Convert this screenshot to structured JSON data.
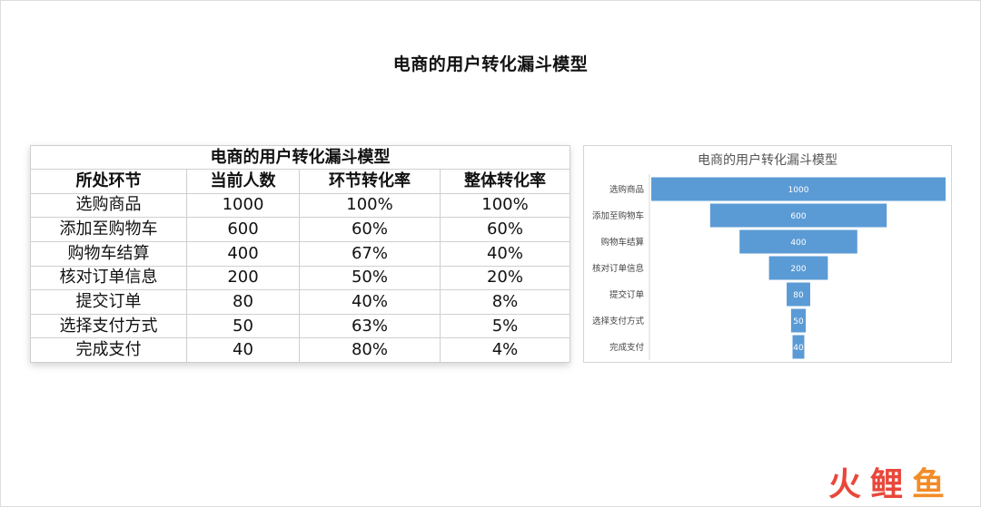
{
  "page": {
    "title": "电商的用户转化漏斗模型"
  },
  "table": {
    "caption": "电商的用户转化漏斗模型",
    "headers": [
      "所处环节",
      "当前人数",
      "环节转化率",
      "整体转化率"
    ],
    "rows": [
      [
        "选购商品",
        "1000",
        "100%",
        "100%"
      ],
      [
        "添加至购物车",
        "600",
        "60%",
        "60%"
      ],
      [
        "购物车结算",
        "400",
        "67%",
        "40%"
      ],
      [
        "核对订单信息",
        "200",
        "50%",
        "20%"
      ],
      [
        "提交订单",
        "80",
        "40%",
        "8%"
      ],
      [
        "选择支付方式",
        "50",
        "63%",
        "5%"
      ],
      [
        "完成支付",
        "40",
        "80%",
        "4%"
      ]
    ]
  },
  "chart_data": {
    "type": "bar",
    "orientation": "horizontal-funnel",
    "title": "电商的用户转化漏斗模型",
    "categories": [
      "选购商品",
      "添加至购物车",
      "购物车结算",
      "核对订单信息",
      "提交订单",
      "选择支付方式",
      "完成支付"
    ],
    "values": [
      1000,
      600,
      400,
      200,
      80,
      50,
      40
    ],
    "xlim": [
      0,
      1000
    ],
    "bar_color": "#5b9bd5",
    "label_color": "#ffffff",
    "grid": false,
    "legend": "none"
  },
  "watermark": {
    "text": "火鲤鱼",
    "colors": [
      "#e8483b",
      "#e8483b",
      "#f28c28"
    ]
  }
}
